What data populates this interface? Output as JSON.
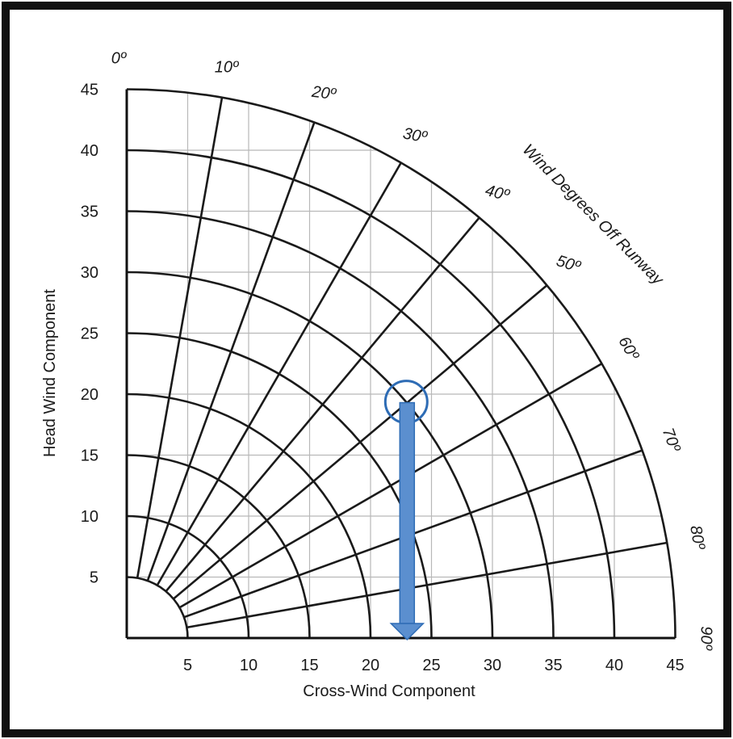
{
  "chart_data": {
    "type": "polar-grid",
    "title": "",
    "xlabel": "Cross-Wind Component",
    "ylabel": "Head Wind Component",
    "arc_title": "Wind Degrees Off Runway",
    "xlim": [
      0,
      45
    ],
    "ylim": [
      0,
      45
    ],
    "x_ticks": [
      5,
      10,
      15,
      20,
      25,
      30,
      35,
      40,
      45
    ],
    "y_ticks": [
      5,
      10,
      15,
      20,
      25,
      30,
      35,
      40,
      45
    ],
    "x_tick_labels": [
      "5",
      "10",
      "15",
      "20",
      "25",
      "30",
      "35",
      "40",
      "45"
    ],
    "y_tick_labels": [
      "5",
      "10",
      "15",
      "20",
      "25",
      "30",
      "35",
      "40",
      "45"
    ],
    "wind_speed_arcs": [
      5,
      10,
      15,
      20,
      25,
      30,
      35,
      40,
      45
    ],
    "angle_lines_deg": [
      0,
      10,
      20,
      30,
      40,
      50,
      60,
      70,
      80,
      90
    ],
    "angle_labels": [
      "0º",
      "10º",
      "20º",
      "30º",
      "40º",
      "50º",
      "60º",
      "70º",
      "80º",
      "90º"
    ],
    "grid": true,
    "highlight": {
      "wind_speed": 30,
      "angle_deg": 50,
      "point": {
        "x": 23,
        "y": 19.3
      },
      "arrow_to": {
        "x": 23,
        "y": 0
      },
      "color": "#5b8fcf",
      "stroke_color": "#2e6cb5"
    },
    "colors": {
      "grid": "#b8b8b8",
      "curves": "#1a1a1a",
      "frame": "#111111"
    }
  }
}
